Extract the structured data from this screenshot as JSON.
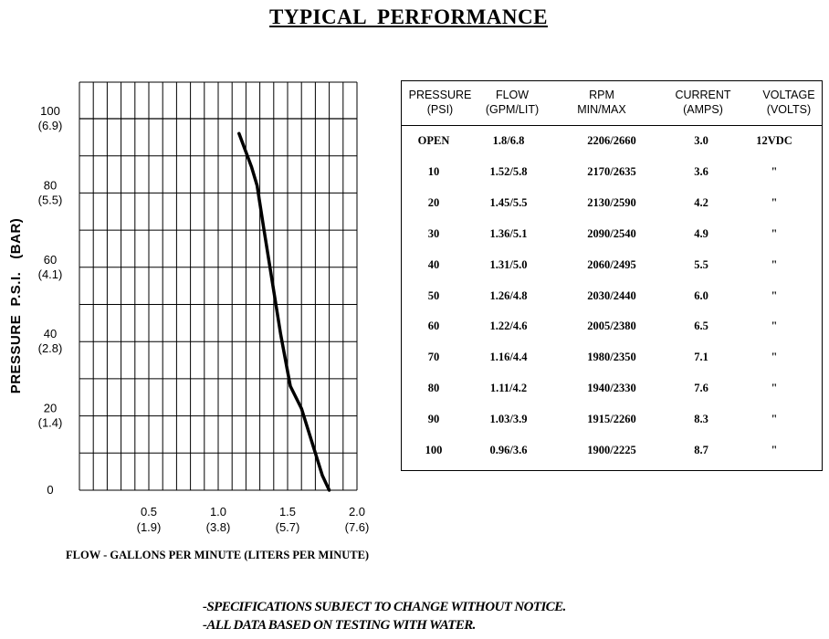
{
  "page": {
    "title": "TYPICAL  PERFORMANCE"
  },
  "chart_data": {
    "type": "line",
    "title": "",
    "ylabel": "PRESSURE  P.S.I.   (BAR)",
    "xlabel": "FLOW - GALLONS PER MINUTE  (LITERS PER MINUTE)",
    "xlim": [
      0,
      2.0
    ],
    "ylim": [
      0,
      100
    ],
    "grid": true,
    "yticks": [
      {
        "value": 100,
        "label": "100",
        "sub": "(6.9)"
      },
      {
        "value": 80,
        "label": "80",
        "sub": "(5.5)"
      },
      {
        "value": 60,
        "label": "60",
        "sub": "(4.1)"
      },
      {
        "value": 40,
        "label": "40",
        "sub": "(2.8)"
      },
      {
        "value": 20,
        "label": "20",
        "sub": "(1.4)"
      },
      {
        "value": 0,
        "label": "0",
        "sub": ""
      }
    ],
    "xticks": [
      {
        "value": 0.5,
        "label": "0.5",
        "sub": "(1.9)"
      },
      {
        "value": 1.0,
        "label": "1.0",
        "sub": "(3.8)"
      },
      {
        "value": 1.5,
        "label": "1.5",
        "sub": "(5.7)"
      },
      {
        "value": 2.0,
        "label": "2.0",
        "sub": "(7.6)"
      }
    ],
    "series": [
      {
        "color": "#000000",
        "points": [
          {
            "x": 1.8,
            "y": 0
          },
          {
            "x": 1.75,
            "y": 4
          },
          {
            "x": 1.7,
            "y": 10
          },
          {
            "x": 1.6,
            "y": 22
          },
          {
            "x": 1.52,
            "y": 28
          },
          {
            "x": 1.45,
            "y": 42
          },
          {
            "x": 1.39,
            "y": 56
          },
          {
            "x": 1.33,
            "y": 70
          },
          {
            "x": 1.28,
            "y": 82
          },
          {
            "x": 1.24,
            "y": 87
          },
          {
            "x": 1.15,
            "y": 96
          }
        ]
      }
    ]
  },
  "table": {
    "headers": [
      {
        "line1": "PRESSURE",
        "line2": "(PSI)"
      },
      {
        "line1": "FLOW",
        "line2": "(GPM/LIT)"
      },
      {
        "line1": "RPM",
        "line2": "MIN/MAX"
      },
      {
        "line1": "CURRENT",
        "line2": "(AMPS)"
      },
      {
        "line1": "VOLTAGE",
        "line2": "(VOLTS)"
      }
    ],
    "rows": [
      {
        "pressure": "OPEN",
        "flow": "1.8/6.8",
        "rpm": "2206/2660",
        "current": "3.0",
        "voltage": "12VDC"
      },
      {
        "pressure": "10",
        "flow": "1.52/5.8",
        "rpm": "2170/2635",
        "current": "3.6",
        "voltage": "\""
      },
      {
        "pressure": "20",
        "flow": "1.45/5.5",
        "rpm": "2130/2590",
        "current": "4.2",
        "voltage": "\""
      },
      {
        "pressure": "30",
        "flow": "1.36/5.1",
        "rpm": "2090/2540",
        "current": "4.9",
        "voltage": "\""
      },
      {
        "pressure": "40",
        "flow": "1.31/5.0",
        "rpm": "2060/2495",
        "current": "5.5",
        "voltage": "\""
      },
      {
        "pressure": "50",
        "flow": "1.26/4.8",
        "rpm": "2030/2440",
        "current": "6.0",
        "voltage": "\""
      },
      {
        "pressure": "60",
        "flow": "1.22/4.6",
        "rpm": "2005/2380",
        "current": "6.5",
        "voltage": "\""
      },
      {
        "pressure": "70",
        "flow": "1.16/4.4",
        "rpm": "1980/2350",
        "current": "7.1",
        "voltage": "\""
      },
      {
        "pressure": "80",
        "flow": "1.11/4.2",
        "rpm": "1940/2330",
        "current": "7.6",
        "voltage": "\""
      },
      {
        "pressure": "90",
        "flow": "1.03/3.9",
        "rpm": "1915/2260",
        "current": "8.3",
        "voltage": "\""
      },
      {
        "pressure": "100",
        "flow": "0.96/3.6",
        "rpm": "1900/2225",
        "current": "8.7",
        "voltage": "\""
      }
    ]
  },
  "notes": {
    "line1": "-SPECIFICATIONS SUBJECT TO CHANGE WITHOUT NOTICE.",
    "line2": "-ALL DATA BASED ON TESTING WITH WATER."
  }
}
